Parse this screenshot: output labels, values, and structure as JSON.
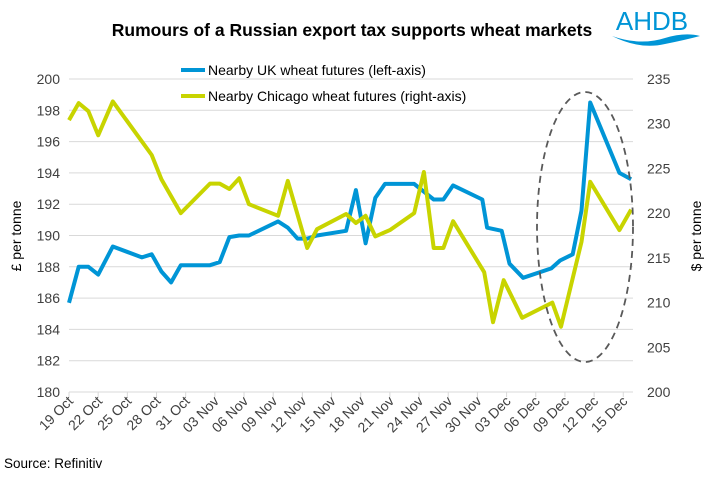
{
  "chart_data": {
    "type": "line",
    "title": "Rumours of a Russian export tax supports wheat markets",
    "source": "Source: Refinitiv",
    "logo_text": "AHDB",
    "x_unit": "days since 19 Oct",
    "x_ticks": [
      {
        "day": 0,
        "label": "19 Oct"
      },
      {
        "day": 3,
        "label": "22 Oct"
      },
      {
        "day": 6,
        "label": "25 Oct"
      },
      {
        "day": 9,
        "label": "28 Oct"
      },
      {
        "day": 12,
        "label": "31 Oct"
      },
      {
        "day": 15,
        "label": "03 Nov"
      },
      {
        "day": 18,
        "label": "06 Nov"
      },
      {
        "day": 21,
        "label": "09 Nov"
      },
      {
        "day": 24,
        "label": "12 Nov"
      },
      {
        "day": 27,
        "label": "15 Nov"
      },
      {
        "day": 30,
        "label": "18 Nov"
      },
      {
        "day": 33,
        "label": "21 Nov"
      },
      {
        "day": 36,
        "label": "24 Nov"
      },
      {
        "day": 39,
        "label": "27 Nov"
      },
      {
        "day": 42,
        "label": "30 Nov"
      },
      {
        "day": 45,
        "label": "03 Dec"
      },
      {
        "day": 48,
        "label": "06 Dec"
      },
      {
        "day": 51,
        "label": "09 Dec"
      },
      {
        "day": 54,
        "label": "12 Dec"
      },
      {
        "day": 57,
        "label": "15 Dec"
      }
    ],
    "xlim": [
      0,
      58
    ],
    "left_axis": {
      "label": "£ per tonne",
      "ylim": [
        180,
        200
      ],
      "ticks": [
        "180",
        "182",
        "184",
        "186",
        "188",
        "190",
        "192",
        "194",
        "196",
        "198",
        "200"
      ]
    },
    "right_axis": {
      "label": "$ per tonne",
      "ylim": [
        200,
        235
      ],
      "ticks": [
        "200",
        "205",
        "210",
        "215",
        "220",
        "225",
        "230",
        "235"
      ]
    },
    "grid": true,
    "legend_position": "top-center",
    "series": [
      {
        "name": "Nearby UK wheat futures (left-axis)",
        "axis": "left",
        "color": "#0095D6",
        "points": [
          [
            0,
            185.7
          ],
          [
            1,
            188.0
          ],
          [
            2,
            188.0
          ],
          [
            3,
            187.5
          ],
          [
            4.5,
            189.3
          ],
          [
            7.5,
            188.6
          ],
          [
            8.5,
            188.8
          ],
          [
            9.5,
            187.7
          ],
          [
            10.5,
            187.0
          ],
          [
            11.5,
            188.1
          ],
          [
            14.5,
            188.1
          ],
          [
            15.5,
            188.3
          ],
          [
            16.5,
            189.9
          ],
          [
            17.5,
            190.0
          ],
          [
            18.5,
            190.0
          ],
          [
            21.5,
            190.9
          ],
          [
            22.5,
            190.5
          ],
          [
            23.5,
            189.8
          ],
          [
            24.5,
            189.8
          ],
          [
            25.5,
            190.0
          ],
          [
            28.5,
            190.3
          ],
          [
            29.5,
            192.9
          ],
          [
            30.5,
            189.5
          ],
          [
            31.5,
            192.4
          ],
          [
            32.5,
            193.3
          ],
          [
            35.5,
            193.3
          ],
          [
            36.5,
            192.8
          ],
          [
            37.5,
            192.3
          ],
          [
            38.5,
            192.3
          ],
          [
            39.5,
            193.2
          ],
          [
            42.5,
            192.3
          ],
          [
            43,
            190.5
          ],
          [
            44.5,
            190.3
          ],
          [
            45.3,
            188.2
          ],
          [
            46.7,
            187.3
          ],
          [
            49.6,
            187.9
          ],
          [
            50.5,
            188.4
          ],
          [
            51.8,
            188.8
          ],
          [
            52.7,
            191.6
          ],
          [
            53.6,
            198.5
          ],
          [
            56.6,
            194.0
          ],
          [
            57.8,
            193.6
          ]
        ]
      },
      {
        "name": "Nearby Chicago wheat futures (right-axis)",
        "axis": "right",
        "color": "#C8D400",
        "points": [
          [
            0,
            230.4
          ],
          [
            1,
            232.3
          ],
          [
            2,
            231.4
          ],
          [
            3,
            228.7
          ],
          [
            4.5,
            232.5
          ],
          [
            8.5,
            226.5
          ],
          [
            9.5,
            223.8
          ],
          [
            11.5,
            220.0
          ],
          [
            14.5,
            223.3
          ],
          [
            15.5,
            223.3
          ],
          [
            16.5,
            222.7
          ],
          [
            17.5,
            223.9
          ],
          [
            18.5,
            221.0
          ],
          [
            21.5,
            219.7
          ],
          [
            22.5,
            223.6
          ],
          [
            24.5,
            216.1
          ],
          [
            25.5,
            218.2
          ],
          [
            28.5,
            219.9
          ],
          [
            29.5,
            218.9
          ],
          [
            30.5,
            219.7
          ],
          [
            31.5,
            217.4
          ],
          [
            33,
            218.1
          ],
          [
            35.5,
            220.0
          ],
          [
            36.5,
            224.6
          ],
          [
            37.5,
            216.1
          ],
          [
            38.5,
            216.1
          ],
          [
            39.5,
            219.1
          ],
          [
            42.7,
            213.4
          ],
          [
            43.6,
            207.8
          ],
          [
            44.7,
            212.5
          ],
          [
            46.6,
            208.3
          ],
          [
            49.7,
            210.0
          ],
          [
            50.6,
            207.3
          ],
          [
            52.7,
            216.8
          ],
          [
            53.6,
            223.5
          ],
          [
            56.6,
            218.1
          ],
          [
            57.8,
            220.4
          ]
        ]
      }
    ]
  }
}
